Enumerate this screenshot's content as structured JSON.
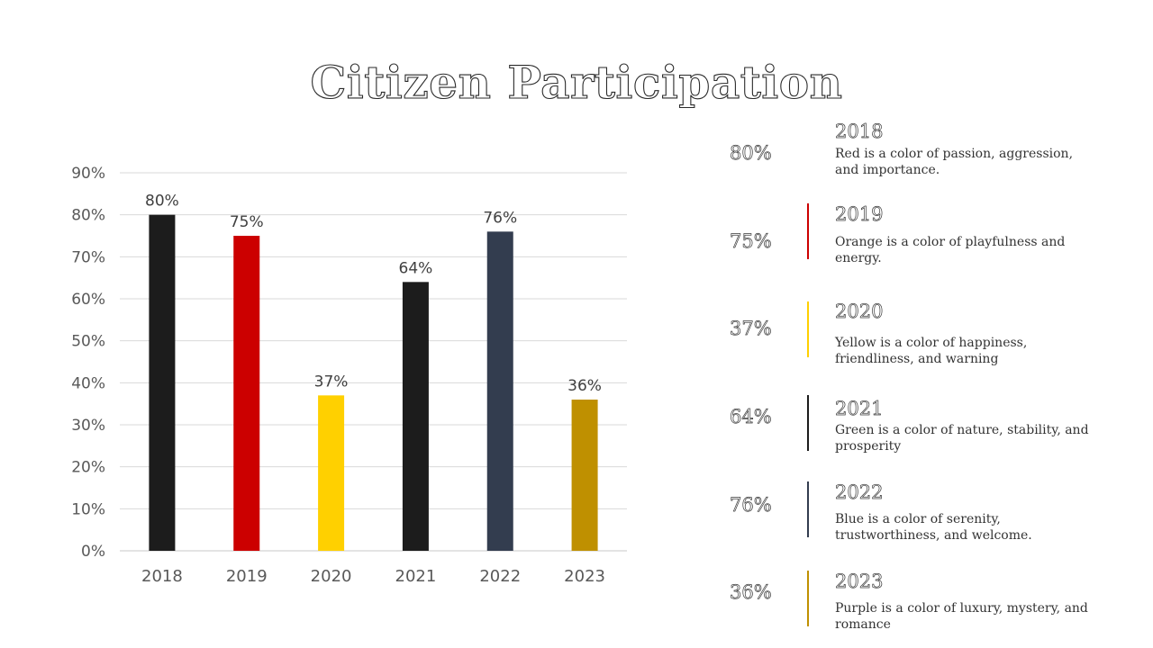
{
  "slide": {
    "title": "Citizen Participation"
  },
  "chart_data": {
    "type": "bar",
    "categories": [
      "2018",
      "2019",
      "2020",
      "2021",
      "2022",
      "2023"
    ],
    "values": [
      80,
      75,
      37,
      64,
      76,
      36
    ],
    "data_labels": [
      "80%",
      "75%",
      "37%",
      "64%",
      "76%",
      "36%"
    ],
    "bar_colors": [
      "#1c1c1c",
      "#cc0000",
      "#ffd000",
      "#1c1c1c",
      "#333d4f",
      "#bf9000"
    ],
    "ylim": [
      0,
      90
    ],
    "yticks": [
      "0%",
      "10%",
      "20%",
      "30%",
      "40%",
      "50%",
      "60%",
      "70%",
      "80%",
      "90%"
    ],
    "grid": true,
    "xlabel": "",
    "ylabel": ""
  },
  "legend": [
    {
      "percent": "80%",
      "year": "2018",
      "description": "Red is a color of passion, aggression, and importance.",
      "color": "#cc0000",
      "show_line": false
    },
    {
      "percent": "75%",
      "year": "2019",
      "description": "Orange is a color of playfulness and energy.",
      "color": "#cc0000",
      "show_line": true
    },
    {
      "percent": "37%",
      "year": "2020",
      "description": "Yellow is a color of happiness, friendliness, and warning",
      "color": "#ffd000",
      "show_line": true
    },
    {
      "percent": "64%",
      "year": "2021",
      "description": "Green is a color of nature, stability, and prosperity",
      "color": "#1c1c1c",
      "show_line": true
    },
    {
      "percent": "76%",
      "year": "2022",
      "description": "Blue is a color of serenity, trustworthiness, and welcome.",
      "color": "#333d4f",
      "show_line": true
    },
    {
      "percent": "36%",
      "year": "2023",
      "description": "Purple is a color of luxury, mystery, and romance",
      "color": "#bf9000",
      "show_line": true
    }
  ]
}
